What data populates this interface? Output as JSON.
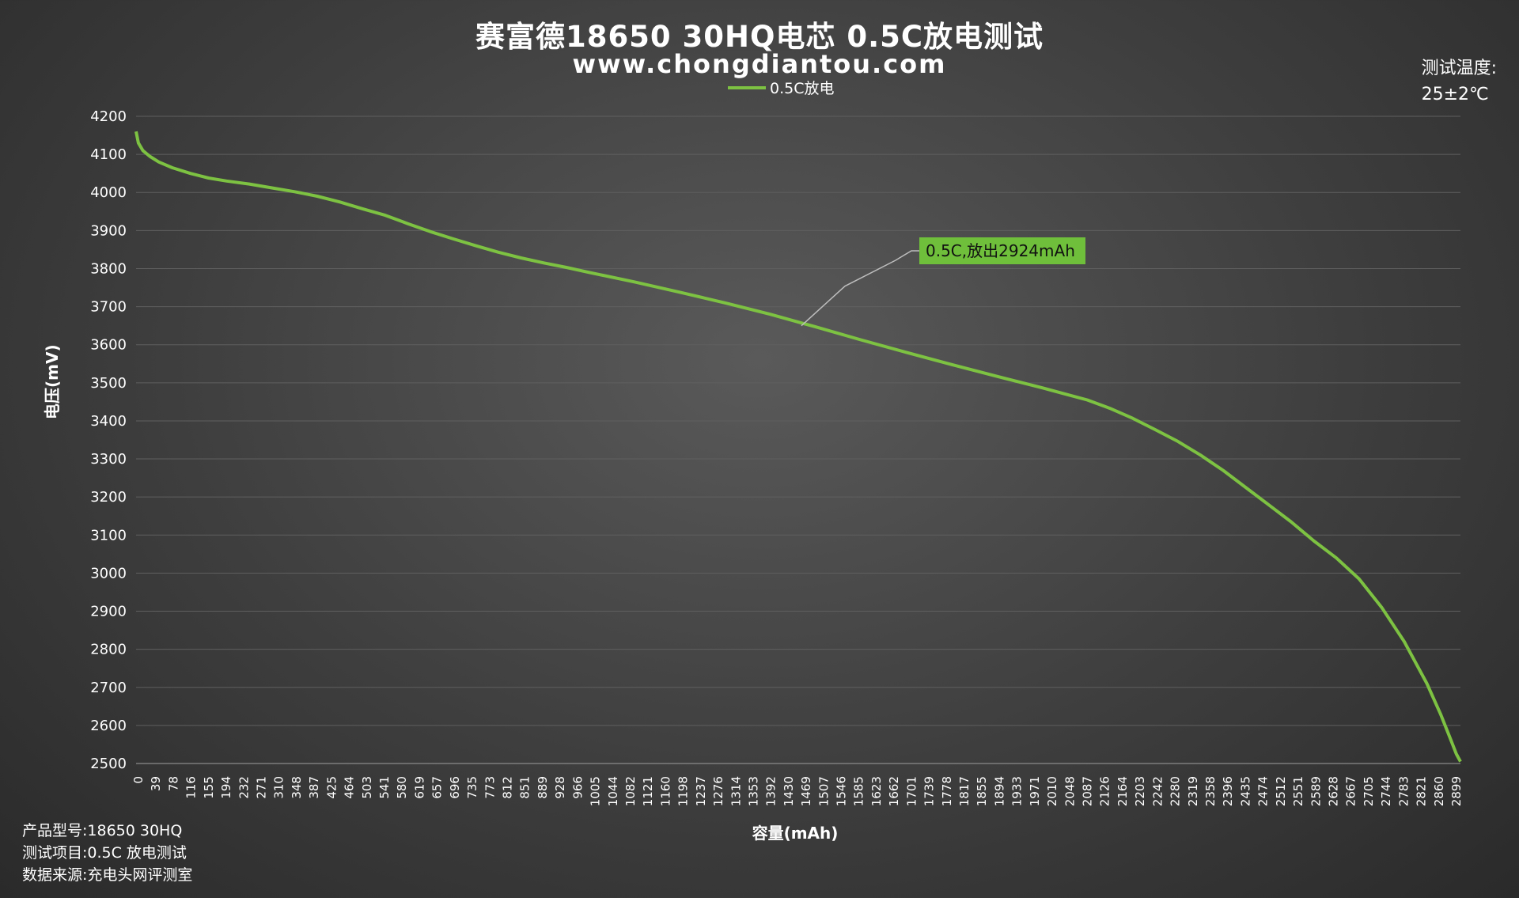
{
  "header": {
    "title": "赛富德18650 30HQ电芯 0.5C放电测试",
    "subtitle": "www.chongdiantou.com",
    "temp_label": "测试温度:",
    "temp_value": "25±2℃"
  },
  "footer": {
    "model": "产品型号:18650 30HQ",
    "item": "测试项目:0.5C 放电测试",
    "source": "数据来源:充电头网评测室"
  },
  "colors": {
    "line": "#7dc242",
    "annotation_bg": "#6fbf3b",
    "grid": "#5f5f5f"
  },
  "chart_data": {
    "type": "line",
    "title": "赛富德18650 30HQ电芯 0.5C放电测试",
    "xlabel": "容量(mAh)",
    "ylabel": "电压(mV)",
    "ylim": [
      2500,
      4200
    ],
    "yticks": [
      4200,
      4100,
      4000,
      3900,
      3800,
      3700,
      3600,
      3500,
      3400,
      3300,
      3200,
      3100,
      3000,
      2900,
      2800,
      2700,
      2600,
      2500
    ],
    "xticks": [
      "0",
      "39",
      "78",
      "116",
      "155",
      "194",
      "232",
      "271",
      "310",
      "348",
      "387",
      "425",
      "464",
      "503",
      "541",
      "580",
      "619",
      "657",
      "696",
      "735",
      "773",
      "812",
      "851",
      "889",
      "928",
      "966",
      "1005",
      "1044",
      "1082",
      "1121",
      "1160",
      "1198",
      "1237",
      "1276",
      "1314",
      "1353",
      "1392",
      "1430",
      "1469",
      "1507",
      "1546",
      "1585",
      "1623",
      "1662",
      "1701",
      "1739",
      "1778",
      "1817",
      "1855",
      "1894",
      "1933",
      "1971",
      "2010",
      "2048",
      "2087",
      "2126",
      "2164",
      "2203",
      "2242",
      "2280",
      "2319",
      "2358",
      "2396",
      "2435",
      "2474",
      "2512",
      "2551",
      "2589",
      "2628",
      "2667",
      "2705",
      "2744",
      "2783",
      "2821",
      "2860",
      "2899"
    ],
    "xlim": [
      0,
      2924
    ],
    "grid": true,
    "legend_position": "top-center",
    "annotation": {
      "text": "0.5C,放出2924mAh",
      "x": 1469,
      "y": 3650
    },
    "series": [
      {
        "name": "0.5C放电",
        "x": [
          0,
          5,
          15,
          30,
          50,
          80,
          120,
          160,
          200,
          250,
          300,
          350,
          400,
          450,
          500,
          550,
          600,
          650,
          700,
          750,
          800,
          850,
          900,
          950,
          1000,
          1100,
          1200,
          1300,
          1400,
          1500,
          1600,
          1700,
          1800,
          1900,
          2000,
          2050,
          2100,
          2150,
          2200,
          2250,
          2300,
          2350,
          2400,
          2450,
          2500,
          2550,
          2600,
          2650,
          2700,
          2750,
          2800,
          2850,
          2880,
          2900,
          2915,
          2924
        ],
        "y": [
          4160,
          4130,
          4110,
          4095,
          4080,
          4065,
          4050,
          4038,
          4030,
          4022,
          4012,
          4002,
          3990,
          3975,
          3957,
          3940,
          3918,
          3897,
          3878,
          3860,
          3843,
          3828,
          3815,
          3803,
          3790,
          3765,
          3738,
          3710,
          3680,
          3647,
          3613,
          3580,
          3548,
          3517,
          3487,
          3471,
          3455,
          3433,
          3407,
          3377,
          3346,
          3310,
          3270,
          3225,
          3180,
          3135,
          3085,
          3040,
          2985,
          2910,
          2820,
          2710,
          2630,
          2570,
          2525,
          2505
        ]
      }
    ]
  }
}
